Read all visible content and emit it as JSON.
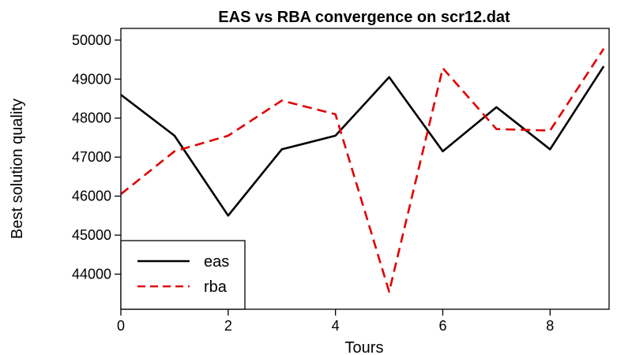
{
  "chart_data": {
    "type": "line",
    "title": "EAS vs RBA convergence on scr12.dat",
    "xlabel": "Tours",
    "ylabel": "Best solution quality",
    "x": [
      0,
      1,
      2,
      3,
      4,
      5,
      6,
      7,
      8,
      9
    ],
    "xlim": [
      0,
      9.1
    ],
    "ylim": [
      43100,
      50300
    ],
    "xticks": [
      0,
      2,
      4,
      6,
      8
    ],
    "xtick_labels": [
      "0",
      "2",
      "4",
      "6",
      "8"
    ],
    "yticks": [
      44000,
      45000,
      46000,
      47000,
      48000,
      49000,
      50000
    ],
    "ytick_labels": [
      "44000",
      "45000",
      "46000",
      "47000",
      "48000",
      "49000",
      "50000"
    ],
    "grid": false,
    "legend_position": "bottom-left",
    "series": [
      {
        "name": "eas",
        "color": "#000000",
        "style": "solid",
        "values": [
          48600,
          47550,
          45500,
          47200,
          47550,
          49050,
          47150,
          48280,
          47200,
          49330
        ]
      },
      {
        "name": "rba",
        "color": "#e00000",
        "style": "dashed",
        "values": [
          46050,
          47150,
          47550,
          48450,
          48100,
          43550,
          49280,
          47720,
          47680,
          49780
        ]
      }
    ]
  }
}
